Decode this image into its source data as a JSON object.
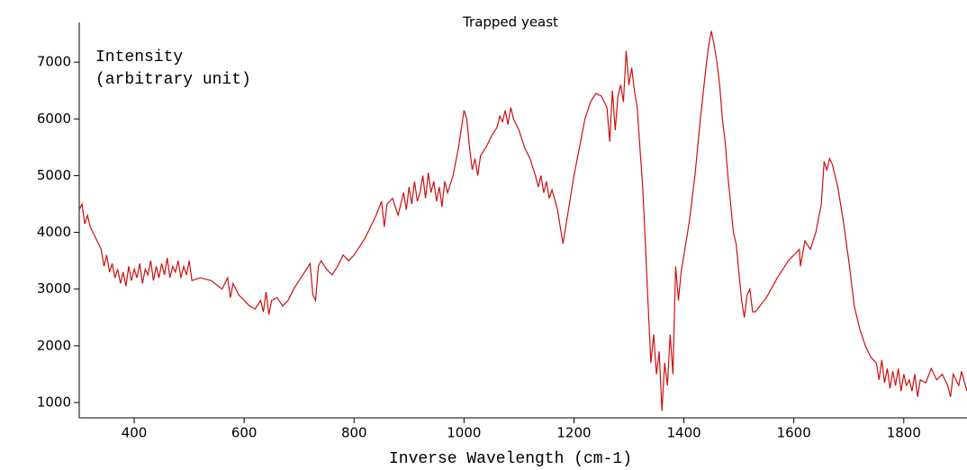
{
  "chart_data": {
    "type": "line",
    "title": "Trapped yeast",
    "y_label_lines": [
      "Intensity",
      "(arbitrary unit)"
    ],
    "x_label": "Inverse Wavelength (cm-1)",
    "xlim": [
      300,
      1915
    ],
    "xticks": [
      400,
      600,
      800,
      1000,
      1200,
      1400,
      1600,
      1800
    ],
    "ylim": [
      730,
      7700
    ],
    "yticks": [
      1000,
      2000,
      3000,
      4000,
      5000,
      6000,
      7000
    ],
    "color": "#cc1010",
    "x": [
      300,
      305,
      310,
      315,
      320,
      330,
      340,
      345,
      350,
      355,
      360,
      365,
      370,
      375,
      380,
      385,
      390,
      395,
      400,
      405,
      410,
      415,
      420,
      425,
      430,
      435,
      440,
      445,
      450,
      455,
      460,
      465,
      470,
      475,
      480,
      485,
      490,
      495,
      500,
      505,
      520,
      540,
      560,
      570,
      575,
      580,
      590,
      600,
      610,
      620,
      630,
      635,
      640,
      645,
      650,
      660,
      670,
      680,
      690,
      700,
      710,
      720,
      725,
      730,
      735,
      740,
      750,
      760,
      770,
      780,
      790,
      800,
      820,
      840,
      850,
      855,
      860,
      870,
      880,
      890,
      895,
      900,
      905,
      910,
      915,
      920,
      925,
      930,
      935,
      940,
      945,
      950,
      955,
      960,
      965,
      970,
      980,
      990,
      1000,
      1005,
      1010,
      1015,
      1020,
      1025,
      1030,
      1040,
      1050,
      1060,
      1065,
      1070,
      1075,
      1080,
      1085,
      1090,
      1100,
      1110,
      1120,
      1130,
      1135,
      1140,
      1145,
      1150,
      1155,
      1160,
      1170,
      1175,
      1180,
      1190,
      1200,
      1210,
      1220,
      1230,
      1240,
      1250,
      1260,
      1265,
      1270,
      1275,
      1280,
      1285,
      1290,
      1295,
      1300,
      1305,
      1310,
      1315,
      1320,
      1325,
      1330,
      1335,
      1340,
      1345,
      1350,
      1355,
      1360,
      1365,
      1370,
      1375,
      1380,
      1385,
      1390,
      1395,
      1400,
      1410,
      1420,
      1430,
      1440,
      1445,
      1450,
      1455,
      1460,
      1465,
      1470,
      1475,
      1480,
      1485,
      1490,
      1495,
      1500,
      1505,
      1510,
      1515,
      1520,
      1525,
      1530,
      1550,
      1570,
      1590,
      1610,
      1612,
      1620,
      1630,
      1640,
      1650,
      1655,
      1660,
      1665,
      1670,
      1680,
      1690,
      1700,
      1710,
      1720,
      1730,
      1740,
      1750,
      1755,
      1760,
      1765,
      1770,
      1775,
      1780,
      1785,
      1790,
      1795,
      1800,
      1805,
      1810,
      1815,
      1820,
      1825,
      1830,
      1840,
      1850,
      1860,
      1870,
      1880,
      1885,
      1890,
      1900,
      1905,
      1915
    ],
    "values": [
      4400,
      4500,
      4150,
      4300,
      4100,
      3900,
      3700,
      3400,
      3600,
      3300,
      3450,
      3200,
      3350,
      3100,
      3300,
      3050,
      3400,
      3150,
      3350,
      3200,
      3450,
      3100,
      3350,
      3250,
      3500,
      3150,
      3400,
      3200,
      3450,
      3250,
      3550,
      3200,
      3400,
      3300,
      3500,
      3200,
      3400,
      3250,
      3500,
      3150,
      3200,
      3150,
      3000,
      3200,
      2850,
      3100,
      2900,
      2800,
      2700,
      2650,
      2800,
      2600,
      2950,
      2550,
      2800,
      2850,
      2700,
      2800,
      3000,
      3150,
      3300,
      3450,
      2900,
      2800,
      3400,
      3500,
      3350,
      3250,
      3400,
      3600,
      3500,
      3600,
      3900,
      4300,
      4550,
      4100,
      4500,
      4600,
      4300,
      4700,
      4400,
      4800,
      4500,
      4900,
      4550,
      4700,
      5000,
      4600,
      5050,
      4700,
      4900,
      4550,
      4800,
      4450,
      4900,
      4700,
      5000,
      5500,
      6150,
      6000,
      5500,
      5100,
      5300,
      5000,
      5350,
      5500,
      5700,
      5850,
      6050,
      5950,
      6150,
      5900,
      6200,
      6000,
      5800,
      5500,
      5300,
      5000,
      4800,
      5000,
      4700,
      4900,
      4600,
      4750,
      4400,
      4100,
      3800,
      4400,
      5000,
      5500,
      6000,
      6300,
      6450,
      6400,
      6200,
      5600,
      6500,
      5800,
      6400,
      6600,
      6300,
      7200,
      6600,
      6900,
      6500,
      6200,
      5500,
      4800,
      3800,
      2700,
      1700,
      2200,
      1500,
      1900,
      850,
      1700,
      1300,
      2200,
      1500,
      3400,
      2800,
      3300,
      3600,
      4200,
      5000,
      6000,
      6900,
      7300,
      7550,
      7300,
      7000,
      6600,
      6000,
      5600,
      5000,
      4500,
      4000,
      3800,
      3300,
      2800,
      2500,
      2900,
      3000,
      2600,
      2600,
      2850,
      3200,
      3500,
      3700,
      3400,
      3850,
      3700,
      4000,
      4500,
      5250,
      5100,
      5300,
      5200,
      4800,
      4200,
      3500,
      2700,
      2300,
      2000,
      1800,
      1700,
      1400,
      1750,
      1350,
      1600,
      1250,
      1550,
      1300,
      1600,
      1200,
      1500,
      1300,
      1400,
      1200,
      1500,
      1100,
      1400,
      1350,
      1600,
      1400,
      1500,
      1300,
      1100,
      1500,
      1300,
      1550,
      1200
    ]
  }
}
